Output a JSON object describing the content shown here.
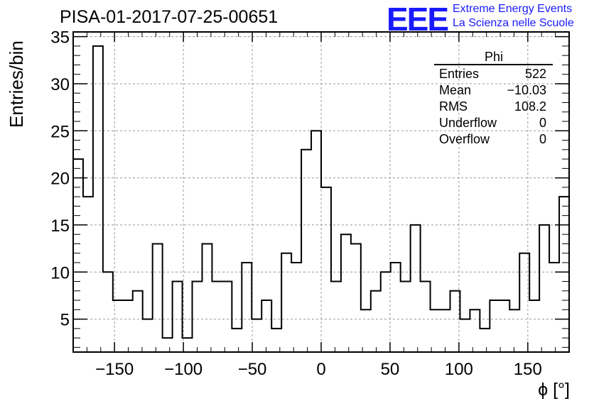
{
  "title": "PISA-01-2017-07-25-00651",
  "logo": {
    "mark": "EEE",
    "line1": "Extreme Energy Events",
    "line2": "La Scienza nelle Scuole",
    "color": "#1a1aff"
  },
  "stats_box": {
    "name": "Phi",
    "rows": [
      {
        "label": "Entries",
        "value": "522"
      },
      {
        "label": "Mean",
        "value": "−10.03"
      },
      {
        "label": "RMS",
        "value": "108.2"
      },
      {
        "label": "Underflow",
        "value": "0"
      },
      {
        "label": "Overflow",
        "value": "0"
      }
    ]
  },
  "chart_data": {
    "type": "bar",
    "histogram": true,
    "xlabel": "ϕ [°]",
    "ylabel": "Entries/bin",
    "xlim": [
      -180,
      180
    ],
    "ylim": [
      1.5,
      35.5
    ],
    "bin_width": 7.2,
    "x_ticks": [
      -150,
      -100,
      -50,
      0,
      50,
      100,
      150
    ],
    "x_tick_labels": [
      "−150",
      "−100",
      "−50",
      "0",
      "50",
      "100",
      "150"
    ],
    "y_ticks": [
      5,
      10,
      15,
      20,
      25,
      30,
      35
    ],
    "y_tick_labels": [
      "5",
      "10",
      "15",
      "20",
      "25",
      "30",
      "35"
    ],
    "grid": true,
    "values": [
      22,
      18,
      34,
      10,
      7,
      7,
      8,
      5,
      13,
      3,
      9,
      3,
      9,
      13,
      9,
      9,
      4,
      11,
      5,
      7,
      4,
      12,
      11,
      23,
      25,
      19,
      9,
      14,
      13,
      6,
      8,
      10,
      11,
      9,
      15,
      9,
      6,
      6,
      8,
      5,
      6,
      4,
      7,
      7,
      6,
      12,
      7,
      15,
      11,
      18
    ]
  }
}
